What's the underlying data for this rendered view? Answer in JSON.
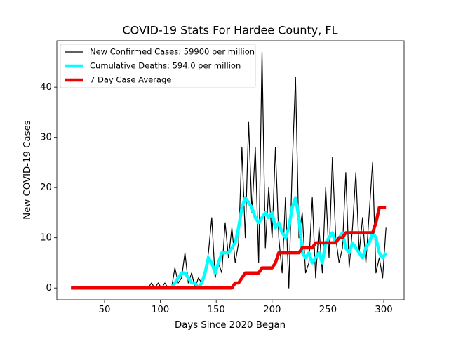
{
  "chart_data": {
    "type": "line",
    "title": "COVID-19 Stats For Hardee County, FL",
    "xlabel": "Days Since 2020 Began",
    "ylabel": "New COVID-19 Cases",
    "x": [
      20,
      23,
      26,
      29,
      32,
      35,
      38,
      41,
      44,
      47,
      50,
      53,
      56,
      59,
      62,
      65,
      68,
      71,
      74,
      77,
      80,
      83,
      86,
      89,
      92,
      95,
      98,
      101,
      104,
      107,
      110,
      113,
      116,
      119,
      122,
      125,
      128,
      131,
      134,
      137,
      140,
      143,
      146,
      149,
      152,
      155,
      158,
      161,
      164,
      167,
      170,
      173,
      176,
      179,
      182,
      185,
      188,
      191,
      194,
      197,
      200,
      203,
      206,
      209,
      212,
      215,
      218,
      221,
      224,
      227,
      230,
      233,
      236,
      239,
      242,
      245,
      248,
      251,
      254,
      257,
      260,
      263,
      266,
      269,
      272,
      275,
      278,
      281,
      284,
      287,
      290,
      293,
      296,
      299,
      302
    ],
    "series": [
      {
        "name": "New Confirmed Cases: 59900 per million",
        "color": "#000000",
        "values": [
          0,
          0,
          0,
          0,
          0,
          0,
          0,
          0,
          0,
          0,
          0,
          0,
          0,
          0,
          0,
          0,
          0,
          0,
          0,
          0,
          0,
          0,
          0,
          0,
          1,
          0,
          1,
          0,
          1,
          0,
          0,
          4,
          1,
          2,
          7,
          1,
          3,
          0,
          2,
          1,
          3,
          7,
          14,
          2,
          5,
          3,
          13,
          6,
          12,
          5,
          9,
          28,
          10,
          33,
          15,
          28,
          5,
          47,
          8,
          20,
          10,
          28,
          10,
          3,
          18,
          0,
          24,
          42,
          10,
          15,
          3,
          5,
          18,
          2,
          12,
          3,
          20,
          6,
          26,
          10,
          5,
          8,
          23,
          4,
          12,
          23,
          7,
          14,
          5,
          15,
          25,
          3,
          6,
          2,
          12
        ]
      },
      {
        "name": "Cumulative Deaths: 594.0 per million",
        "color": "#00ffff",
        "values": [
          0,
          0,
          0,
          0,
          0,
          0,
          0,
          0,
          0,
          0,
          0,
          0,
          0,
          0,
          0,
          0,
          0,
          0,
          0,
          0,
          0,
          0,
          0,
          0,
          0,
          0,
          0,
          0,
          0,
          0,
          0,
          1,
          2,
          3,
          3,
          2,
          1,
          1,
          0,
          1,
          3,
          6,
          5,
          3,
          5,
          7,
          7,
          7,
          8,
          9,
          12,
          16,
          18,
          17,
          16,
          14,
          13,
          14,
          15,
          14,
          15,
          12,
          13,
          11,
          10,
          12,
          16,
          18,
          14,
          7,
          6,
          7,
          5,
          6,
          7,
          5,
          9,
          10,
          11,
          9,
          10,
          11,
          8,
          7,
          9,
          8,
          7,
          6,
          8,
          9,
          11,
          10,
          7,
          6,
          7
        ]
      },
      {
        "name": "7 Day Case Average",
        "color": "#ee0000",
        "values": [
          0,
          0,
          0,
          0,
          0,
          0,
          0,
          0,
          0,
          0,
          0,
          0,
          0,
          0,
          0,
          0,
          0,
          0,
          0,
          0,
          0,
          0,
          0,
          0,
          0,
          0,
          0,
          0,
          0,
          0,
          0,
          0,
          0,
          0,
          0,
          0,
          0,
          0,
          0,
          0,
          0,
          0,
          0,
          0,
          0,
          0,
          0,
          0,
          0,
          1,
          1,
          2,
          3,
          3,
          3,
          3,
          3,
          4,
          4,
          4,
          4,
          5,
          7,
          7,
          7,
          7,
          7,
          7,
          7,
          8,
          8,
          8,
          8,
          9,
          9,
          9,
          9,
          9,
          9,
          9,
          10,
          10,
          11,
          11,
          11,
          11,
          11,
          11,
          11,
          11,
          11,
          13,
          16,
          16,
          16
        ]
      }
    ],
    "xlim": [
      7.3,
      318.2
    ],
    "xticks": [
      50,
      100,
      150,
      200,
      250,
      300
    ],
    "ylim": [
      -2.35,
      49.25
    ],
    "yticks": [
      0,
      10,
      20,
      30,
      40
    ],
    "legend": "upper left"
  }
}
